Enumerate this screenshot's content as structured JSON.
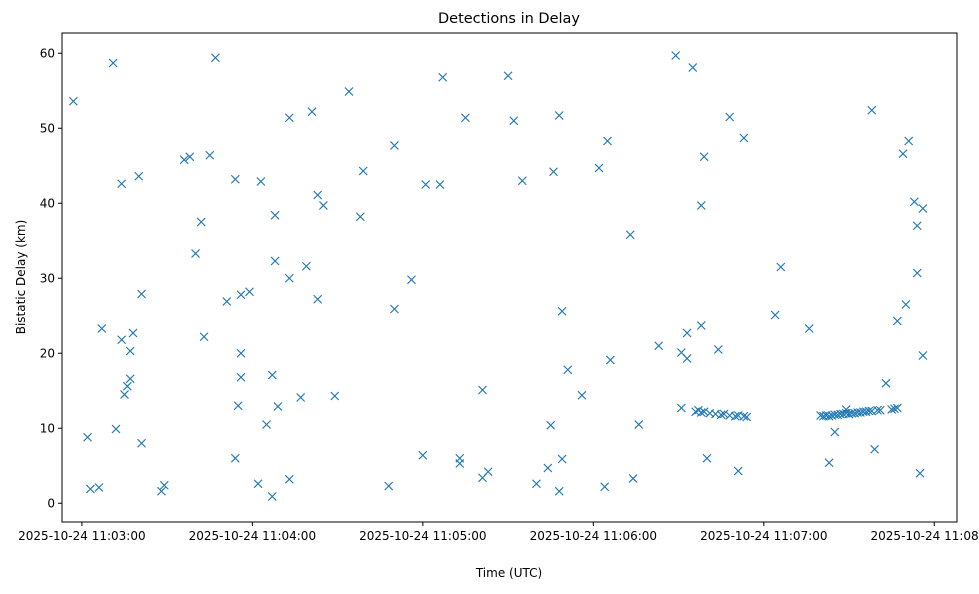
{
  "chart_data": {
    "type": "scatter",
    "title": "Detections in Delay",
    "xlabel": "Time (UTC)",
    "ylabel": "Bistatic Delay (km)",
    "x_ticks": [
      "2025-10-24 11:03:00",
      "2025-10-24 11:04:00",
      "2025-10-24 11:05:00",
      "2025-10-24 11:06:00",
      "2025-10-24 11:07:00",
      "2025-10-24 11:08:00"
    ],
    "y_ticks": [
      "0",
      "10",
      "20",
      "30",
      "40",
      "50",
      "60"
    ],
    "xlim": [
      "2025-10-24 11:02:53",
      "2025-10-24 11:08:08"
    ],
    "ylim": [
      -2.5,
      62.7
    ],
    "marker": "x",
    "color": "#1f77b4",
    "grid": false,
    "points": [
      [
        "2025-10-24 11:02:57",
        53.6
      ],
      [
        "2025-10-24 11:03:02",
        8.8
      ],
      [
        "2025-10-24 11:03:03",
        1.9
      ],
      [
        "2025-10-24 11:03:06",
        2.1
      ],
      [
        "2025-10-24 11:03:07",
        23.3
      ],
      [
        "2025-10-24 11:03:11",
        58.7
      ],
      [
        "2025-10-24 11:03:12",
        9.9
      ],
      [
        "2025-10-24 11:03:14",
        21.8
      ],
      [
        "2025-10-24 11:03:14",
        42.6
      ],
      [
        "2025-10-24 11:03:15",
        14.5
      ],
      [
        "2025-10-24 11:03:16",
        15.6
      ],
      [
        "2025-10-24 11:03:17",
        16.6
      ],
      [
        "2025-10-24 11:03:17",
        20.3
      ],
      [
        "2025-10-24 11:03:18",
        22.7
      ],
      [
        "2025-10-24 11:03:20",
        43.6
      ],
      [
        "2025-10-24 11:03:21",
        27.9
      ],
      [
        "2025-10-24 11:03:21",
        8.0
      ],
      [
        "2025-10-24 11:03:28",
        1.6
      ],
      [
        "2025-10-24 11:03:29",
        2.4
      ],
      [
        "2025-10-24 11:03:36",
        45.8
      ],
      [
        "2025-10-24 11:03:38",
        46.2
      ],
      [
        "2025-10-24 11:03:40",
        33.3
      ],
      [
        "2025-10-24 11:03:42",
        37.5
      ],
      [
        "2025-10-24 11:03:43",
        22.2
      ],
      [
        "2025-10-24 11:03:45",
        46.4
      ],
      [
        "2025-10-24 11:03:47",
        59.4
      ],
      [
        "2025-10-24 11:03:51",
        26.9
      ],
      [
        "2025-10-24 11:03:54",
        6.0
      ],
      [
        "2025-10-24 11:03:54",
        43.2
      ],
      [
        "2025-10-24 11:03:55",
        13.0
      ],
      [
        "2025-10-24 11:03:56",
        16.8
      ],
      [
        "2025-10-24 11:03:56",
        20.0
      ],
      [
        "2025-10-24 11:03:56",
        27.8
      ],
      [
        "2025-10-24 11:03:59",
        28.2
      ],
      [
        "2025-10-24 11:04:02",
        2.6
      ],
      [
        "2025-10-24 11:04:03",
        42.9
      ],
      [
        "2025-10-24 11:04:05",
        10.5
      ],
      [
        "2025-10-24 11:04:07",
        0.9
      ],
      [
        "2025-10-24 11:04:07",
        17.1
      ],
      [
        "2025-10-24 11:04:08",
        32.3
      ],
      [
        "2025-10-24 11:04:08",
        38.4
      ],
      [
        "2025-10-24 11:04:09",
        12.9
      ],
      [
        "2025-10-24 11:04:13",
        3.2
      ],
      [
        "2025-10-24 11:04:13",
        30.0
      ],
      [
        "2025-10-24 11:04:13",
        51.4
      ],
      [
        "2025-10-24 11:04:17",
        14.1
      ],
      [
        "2025-10-24 11:04:19",
        31.6
      ],
      [
        "2025-10-24 11:04:21",
        52.2
      ],
      [
        "2025-10-24 11:04:23",
        27.2
      ],
      [
        "2025-10-24 11:04:23",
        41.1
      ],
      [
        "2025-10-24 11:04:25",
        39.7
      ],
      [
        "2025-10-24 11:04:29",
        14.3
      ],
      [
        "2025-10-24 11:04:34",
        54.9
      ],
      [
        "2025-10-24 11:04:38",
        38.2
      ],
      [
        "2025-10-24 11:04:39",
        44.3
      ],
      [
        "2025-10-24 11:04:48",
        2.3
      ],
      [
        "2025-10-24 11:04:50",
        25.9
      ],
      [
        "2025-10-24 11:04:50",
        47.7
      ],
      [
        "2025-10-24 11:04:56",
        29.8
      ],
      [
        "2025-10-24 11:05:00",
        6.4
      ],
      [
        "2025-10-24 11:05:01",
        42.5
      ],
      [
        "2025-10-24 11:05:06",
        42.5
      ],
      [
        "2025-10-24 11:05:07",
        56.8
      ],
      [
        "2025-10-24 11:05:13",
        5.3
      ],
      [
        "2025-10-24 11:05:13",
        6.0
      ],
      [
        "2025-10-24 11:05:15",
        51.4
      ],
      [
        "2025-10-24 11:05:21",
        15.1
      ],
      [
        "2025-10-24 11:05:21",
        3.4
      ],
      [
        "2025-10-24 11:05:23",
        4.2
      ],
      [
        "2025-10-24 11:05:30",
        57.0
      ],
      [
        "2025-10-24 11:05:32",
        51.0
      ],
      [
        "2025-10-24 11:05:35",
        43.0
      ],
      [
        "2025-10-24 11:05:40",
        2.6
      ],
      [
        "2025-10-24 11:05:44",
        4.7
      ],
      [
        "2025-10-24 11:05:45",
        10.4
      ],
      [
        "2025-10-24 11:05:46",
        44.2
      ],
      [
        "2025-10-24 11:05:48",
        51.7
      ],
      [
        "2025-10-24 11:05:48",
        1.6
      ],
      [
        "2025-10-24 11:05:49",
        25.6
      ],
      [
        "2025-10-24 11:05:49",
        5.9
      ],
      [
        "2025-10-24 11:05:51",
        17.8
      ],
      [
        "2025-10-24 11:05:56",
        14.4
      ],
      [
        "2025-10-24 11:06:02",
        44.7
      ],
      [
        "2025-10-24 11:06:04",
        2.2
      ],
      [
        "2025-10-24 11:06:05",
        48.3
      ],
      [
        "2025-10-24 11:06:06",
        19.1
      ],
      [
        "2025-10-24 11:06:13",
        35.8
      ],
      [
        "2025-10-24 11:06:14",
        3.3
      ],
      [
        "2025-10-24 11:06:16",
        10.5
      ],
      [
        "2025-10-24 11:06:23",
        21.0
      ],
      [
        "2025-10-24 11:06:29",
        59.7
      ],
      [
        "2025-10-24 11:06:31",
        12.7
      ],
      [
        "2025-10-24 11:06:31",
        20.1
      ],
      [
        "2025-10-24 11:06:33",
        22.7
      ],
      [
        "2025-10-24 11:06:33",
        19.3
      ],
      [
        "2025-10-24 11:06:35",
        58.1
      ],
      [
        "2025-10-24 11:06:36",
        12.2
      ],
      [
        "2025-10-24 11:06:37",
        12.4
      ],
      [
        "2025-10-24 11:06:38",
        23.7
      ],
      [
        "2025-10-24 11:06:38",
        39.7
      ],
      [
        "2025-10-24 11:06:38",
        12.1
      ],
      [
        "2025-10-24 11:06:39",
        46.2
      ],
      [
        "2025-10-24 11:06:39",
        12.2
      ],
      [
        "2025-10-24 11:06:40",
        6.0
      ],
      [
        "2025-10-24 11:06:41",
        12.0
      ],
      [
        "2025-10-24 11:06:43",
        11.9
      ],
      [
        "2025-10-24 11:06:44",
        20.5
      ],
      [
        "2025-10-24 11:06:45",
        11.8
      ],
      [
        "2025-10-24 11:06:46",
        11.9
      ],
      [
        "2025-10-24 11:06:48",
        51.5
      ],
      [
        "2025-10-24 11:06:48",
        11.7
      ],
      [
        "2025-10-24 11:06:50",
        11.6
      ],
      [
        "2025-10-24 11:06:51",
        4.3
      ],
      [
        "2025-10-24 11:06:51",
        11.7
      ],
      [
        "2025-10-24 11:06:53",
        48.7
      ],
      [
        "2025-10-24 11:06:53",
        11.6
      ],
      [
        "2025-10-24 11:06:54",
        11.5
      ],
      [
        "2025-10-24 11:07:04",
        25.1
      ],
      [
        "2025-10-24 11:07:06",
        31.5
      ],
      [
        "2025-10-24 11:07:16",
        23.3
      ],
      [
        "2025-10-24 11:07:20",
        11.7
      ],
      [
        "2025-10-24 11:07:21",
        11.6
      ],
      [
        "2025-10-24 11:07:22",
        11.7
      ],
      [
        "2025-10-24 11:07:23",
        11.6
      ],
      [
        "2025-10-24 11:07:23",
        5.4
      ],
      [
        "2025-10-24 11:07:24",
        11.7
      ],
      [
        "2025-10-24 11:07:25",
        9.5
      ],
      [
        "2025-10-24 11:07:25",
        11.8
      ],
      [
        "2025-10-24 11:07:26",
        11.8
      ],
      [
        "2025-10-24 11:07:27",
        11.9
      ],
      [
        "2025-10-24 11:07:28",
        11.9
      ],
      [
        "2025-10-24 11:07:29",
        12.5
      ],
      [
        "2025-10-24 11:07:29",
        12.0
      ],
      [
        "2025-10-24 11:07:30",
        11.9
      ],
      [
        "2025-10-24 11:07:31",
        12.0
      ],
      [
        "2025-10-24 11:07:32",
        12.0
      ],
      [
        "2025-10-24 11:07:33",
        12.1
      ],
      [
        "2025-10-24 11:07:34",
        12.1
      ],
      [
        "2025-10-24 11:07:35",
        12.2
      ],
      [
        "2025-10-24 11:07:36",
        12.2
      ],
      [
        "2025-10-24 11:07:37",
        12.3
      ],
      [
        "2025-10-24 11:07:38",
        52.4
      ],
      [
        "2025-10-24 11:07:38",
        12.3
      ],
      [
        "2025-10-24 11:07:39",
        7.2
      ],
      [
        "2025-10-24 11:07:40",
        12.4
      ],
      [
        "2025-10-24 11:07:41",
        12.4
      ],
      [
        "2025-10-24 11:07:43",
        16.0
      ],
      [
        "2025-10-24 11:07:45",
        12.5
      ],
      [
        "2025-10-24 11:07:46",
        12.6
      ],
      [
        "2025-10-24 11:07:47",
        24.3
      ],
      [
        "2025-10-24 11:07:47",
        12.7
      ],
      [
        "2025-10-24 11:07:49",
        46.6
      ],
      [
        "2025-10-24 11:07:50",
        26.5
      ],
      [
        "2025-10-24 11:07:51",
        48.3
      ],
      [
        "2025-10-24 11:07:53",
        40.2
      ],
      [
        "2025-10-24 11:07:54",
        37.0
      ],
      [
        "2025-10-24 11:07:54",
        30.7
      ],
      [
        "2025-10-24 11:07:55",
        4.0
      ],
      [
        "2025-10-24 11:07:56",
        19.7
      ],
      [
        "2025-10-24 11:07:56",
        39.3
      ]
    ]
  }
}
